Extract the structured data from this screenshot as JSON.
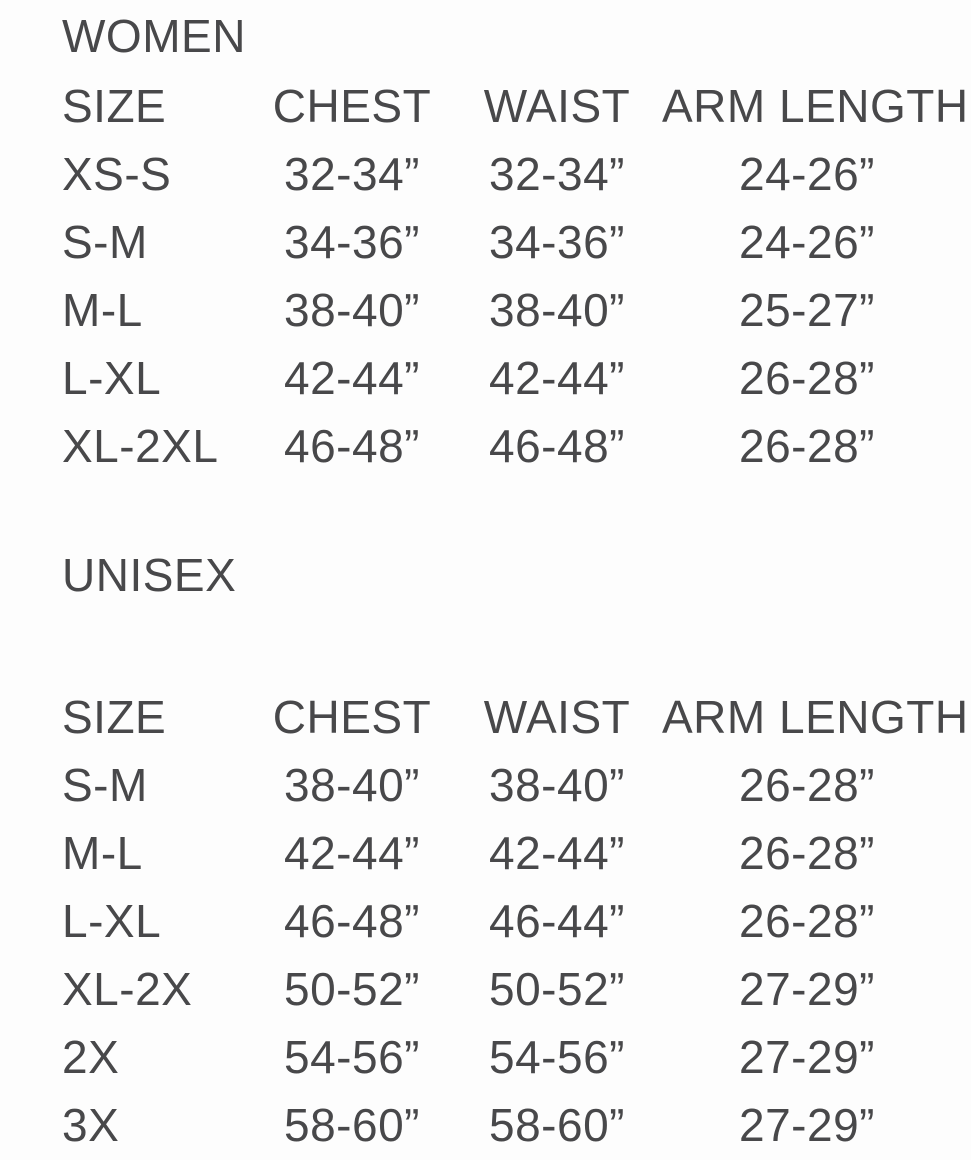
{
  "page": {
    "background_color": "#fdfdfd",
    "text_color": "#48484a"
  },
  "chart_data": [
    {
      "type": "table",
      "title": "WOMEN",
      "columns": [
        "SIZE",
        "CHEST",
        "WAIST",
        "ARM LENGTH"
      ],
      "rows": [
        [
          "XS-S",
          "32-34”",
          "32-34”",
          "24-26”"
        ],
        [
          "S-M",
          "34-36”",
          "34-36”",
          "24-26”"
        ],
        [
          "M-L",
          "38-40”",
          "38-40”",
          "25-27”"
        ],
        [
          "L-XL",
          "42-44”",
          "42-44”",
          "26-28”"
        ],
        [
          "XL-2XL",
          "46-48”",
          "46-48”",
          "26-28”"
        ]
      ]
    },
    {
      "type": "table",
      "title": "UNISEX",
      "columns": [
        "SIZE",
        "CHEST",
        "WAIST",
        "ARM LENGTH"
      ],
      "rows": [
        [
          "S-M",
          "38-40”",
          "38-40”",
          "26-28”"
        ],
        [
          "M-L",
          "42-44”",
          "42-44”",
          "26-28”"
        ],
        [
          "L-XL",
          "46-48”",
          "46-44”",
          "26-28”"
        ],
        [
          "XL-2X",
          "50-52”",
          "50-52”",
          "27-29”"
        ],
        [
          "2X",
          "54-56”",
          "54-56”",
          "27-29”"
        ],
        [
          "3X",
          "58-60”",
          "58-60”",
          "27-29”"
        ]
      ]
    }
  ]
}
